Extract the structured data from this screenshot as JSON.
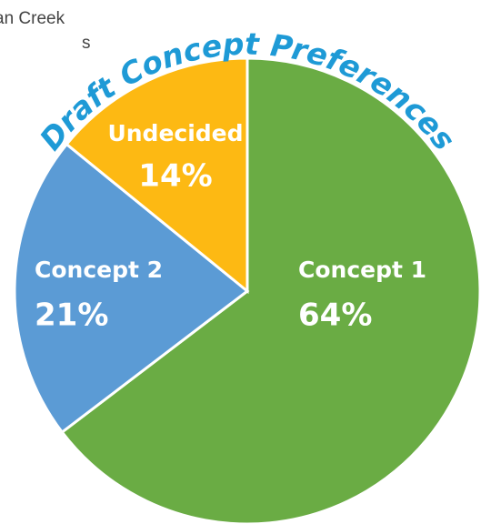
{
  "chart_data": {
    "type": "pie",
    "title": "Draft Concept Preferences",
    "annotations": [
      "an Creek",
      "s"
    ],
    "categories": [
      "Concept 1",
      "Concept 2",
      "Undecided"
    ],
    "values": [
      64,
      21,
      14
    ],
    "value_labels": [
      "64%",
      "21%",
      "14%"
    ],
    "colors": [
      "#6aac44",
      "#5b9bd5",
      "#fdb913"
    ]
  }
}
